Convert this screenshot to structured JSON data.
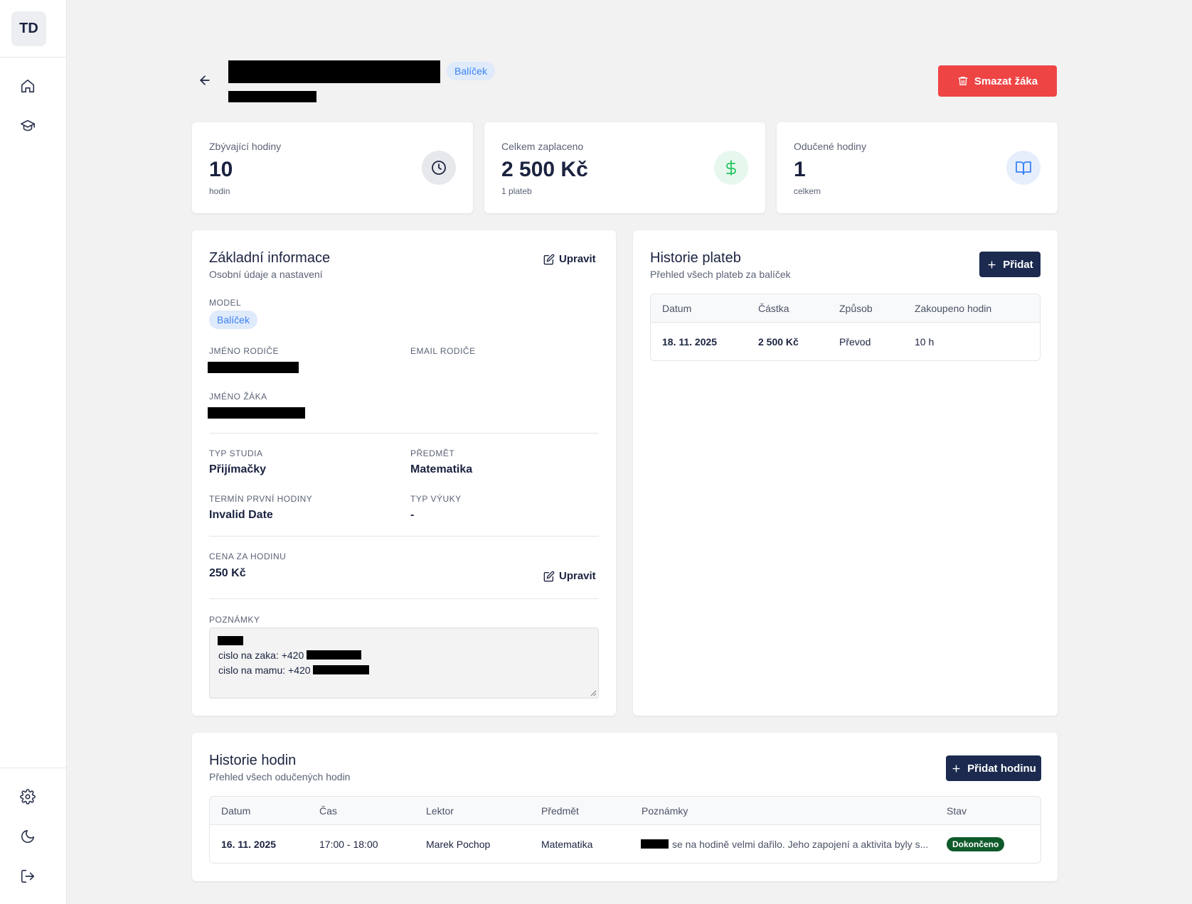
{
  "sidebar": {
    "logo": "TD",
    "items": [
      {
        "icon": "home-icon"
      },
      {
        "icon": "graduation-cap-icon"
      }
    ],
    "bottom_items": [
      {
        "icon": "gear-icon"
      },
      {
        "icon": "moon-icon"
      },
      {
        "icon": "logout-icon"
      }
    ]
  },
  "header": {
    "model_badge": "Balíček",
    "delete_label": "Smazat žáka"
  },
  "stats": [
    {
      "label": "Zbývající hodiny",
      "value": "10",
      "sub": "hodin",
      "icon": "clock-icon",
      "icon_bg": "#e7e8ec",
      "icon_color": "#1b2340"
    },
    {
      "label": "Celkem zaplaceno",
      "value": "2 500 Kč",
      "sub": "1 plateb",
      "icon": "dollar-icon",
      "icon_bg": "#e6f7ee",
      "icon_color": "#22c55e"
    },
    {
      "label": "Odučené hodiny",
      "value": "1",
      "sub": "celkem",
      "icon": "book-icon",
      "icon_bg": "#e6eefc",
      "icon_color": "#3b82f6"
    }
  ],
  "basic_info": {
    "title": "Základní informace",
    "subtitle": "Osobní údaje a nastavení",
    "edit_label": "Upravit",
    "model_label": "MODEL",
    "model_value": "Balíček",
    "parent_name_label": "JMÉNO RODIČE",
    "parent_email_label": "EMAIL RODIČE",
    "student_name_label": "JMÉNO ŽÁKA",
    "study_type_label": "TYP STUDIA",
    "study_type_value": "Přijímačky",
    "subject_label": "PŘEDMĚT",
    "subject_value": "Matematika",
    "first_lesson_label": "TERMÍN PRVNÍ HODINY",
    "first_lesson_value": "Invalid Date",
    "teaching_type_label": "TYP VÝUKY",
    "teaching_type_value": "-",
    "price_label": "CENA ZA HODINU",
    "price_value": "250 Kč",
    "price_edit_label": "Upravit",
    "notes_label": "POZNÁMKY",
    "notes_lines": [
      "cislo na zaka: +420",
      "cislo na mamu: +420"
    ]
  },
  "payments": {
    "title": "Historie plateb",
    "subtitle": "Přehled všech plateb za balíček",
    "add_label": "Přidat",
    "columns": [
      "Datum",
      "Částka",
      "Způsob",
      "Zakoupeno hodin"
    ],
    "rows": [
      {
        "date": "18. 11. 2025",
        "amount": "2 500 Kč",
        "method": "Převod",
        "hours": "10 h"
      }
    ]
  },
  "lessons": {
    "title": "Historie hodin",
    "subtitle": "Přehled všech odučených hodin",
    "add_label": "Přidat hodinu",
    "columns": [
      "Datum",
      "Čas",
      "Lektor",
      "Předmět",
      "Poznámky",
      "Stav"
    ],
    "rows": [
      {
        "date": "16. 11. 2025",
        "time": "17:00 - 18:00",
        "tutor": "Marek Pochop",
        "subject": "Matematika",
        "notes": "se na hodině velmi dařilo. Jeho zapojení a aktivita byly s...",
        "status": "Dokončeno"
      }
    ]
  }
}
